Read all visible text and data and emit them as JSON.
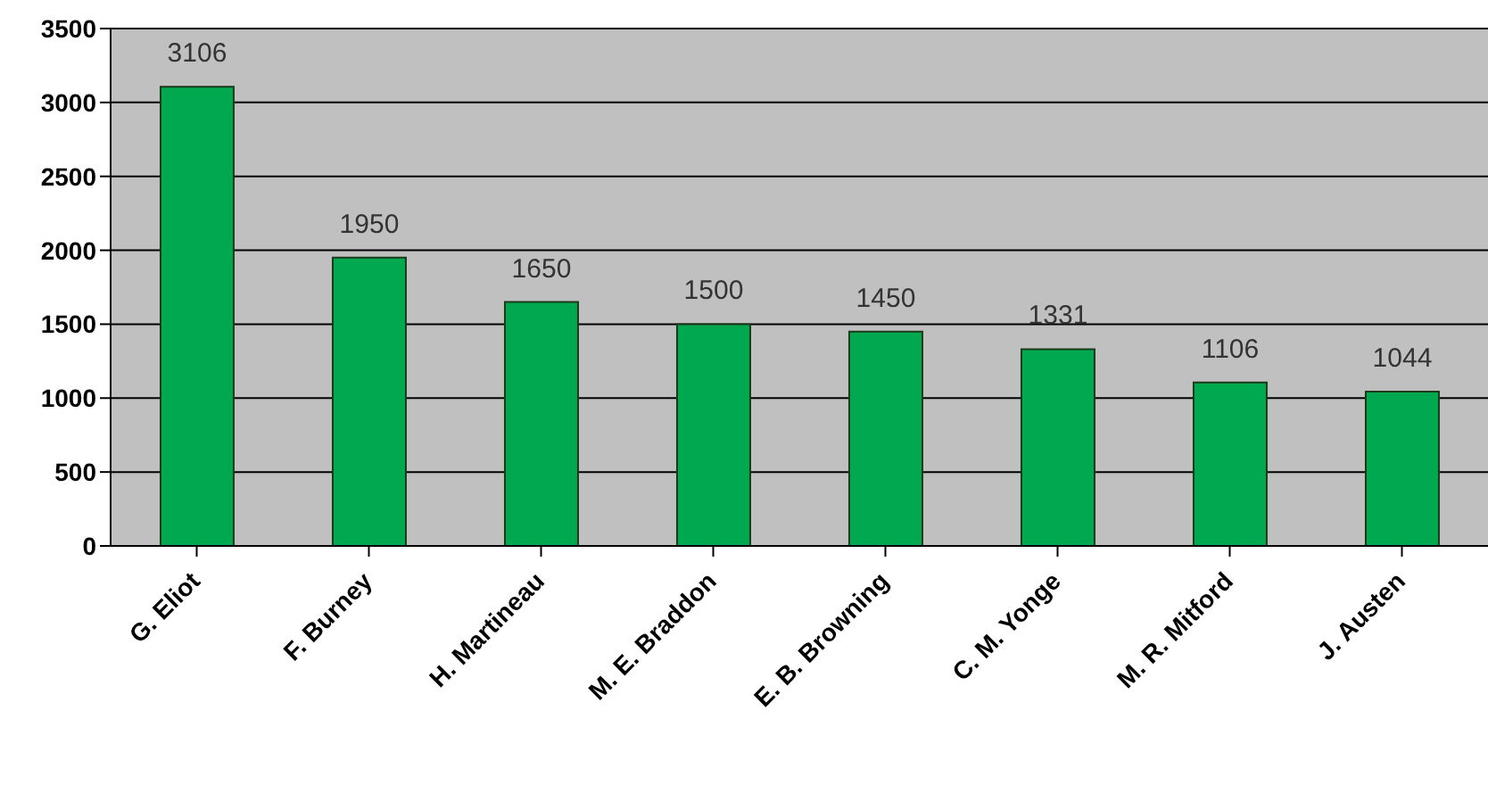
{
  "chart_data": {
    "type": "bar",
    "categories": [
      "G. Eliot",
      "F. Burney",
      "H. Martineau",
      "M. E. Braddon",
      "E. B. Browning",
      "C. M. Yonge",
      "M. R. Mitford",
      "J. Austen"
    ],
    "values": [
      3106,
      1950,
      1650,
      1500,
      1450,
      1331,
      1106,
      1044
    ],
    "color": "#00a84f",
    "ylim": [
      0,
      3500
    ],
    "yticks": [
      0,
      500,
      1000,
      1500,
      2000,
      2500,
      3000,
      3500
    ],
    "grid": "y",
    "data_labels": true
  }
}
